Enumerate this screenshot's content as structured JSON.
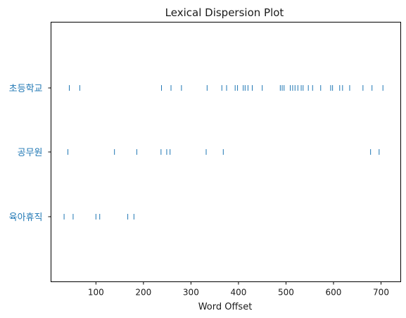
{
  "chart_data": {
    "type": "scatter",
    "title": "Lexical Dispersion Plot",
    "xlabel": "Word Offset",
    "ylabel": "",
    "xlim": [
      0,
      735
    ],
    "xticks": [
      100,
      200,
      300,
      400,
      500,
      600,
      700
    ],
    "grid": false,
    "legend": "none",
    "colors": {
      "accent": "#1f77b4",
      "axis": "#000000",
      "text": "#1a1a1a"
    },
    "series": [
      {
        "name": "초등학교",
        "x": [
          44,
          66,
          238,
          258,
          280,
          334,
          365,
          375,
          393,
          398,
          410,
          414,
          420,
          429,
          450,
          488,
          492,
          496,
          509,
          514,
          519,
          525,
          532,
          536,
          547,
          556,
          573,
          594,
          598,
          613,
          619,
          634,
          662,
          681,
          704
        ]
      },
      {
        "name": "공무원",
        "x": [
          41,
          139,
          186,
          237,
          249,
          256,
          332,
          368,
          678,
          696
        ]
      },
      {
        "name": "육아휴직",
        "x": [
          33,
          52,
          100,
          108,
          167,
          180
        ]
      }
    ]
  }
}
